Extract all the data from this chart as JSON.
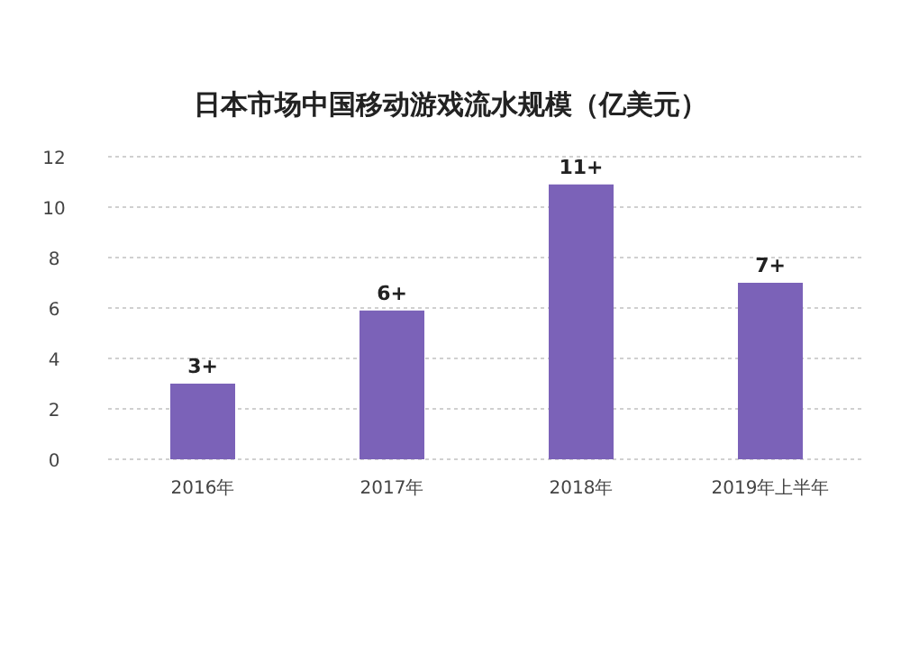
{
  "chart_data": {
    "type": "bar",
    "title": "日本市场中国移动游戏流水规模（亿美元）",
    "categories": [
      "2016年",
      "2017年",
      "2018年",
      "2019年上半年"
    ],
    "values": [
      3.0,
      5.9,
      10.9,
      7.0
    ],
    "value_labels": [
      "3+",
      "6+",
      "11+",
      "7+"
    ],
    "color": "#7b62b8",
    "ylim": [
      0,
      12
    ],
    "yticks": [
      0,
      2,
      4,
      6,
      8,
      10,
      12
    ],
    "grid": "y"
  }
}
